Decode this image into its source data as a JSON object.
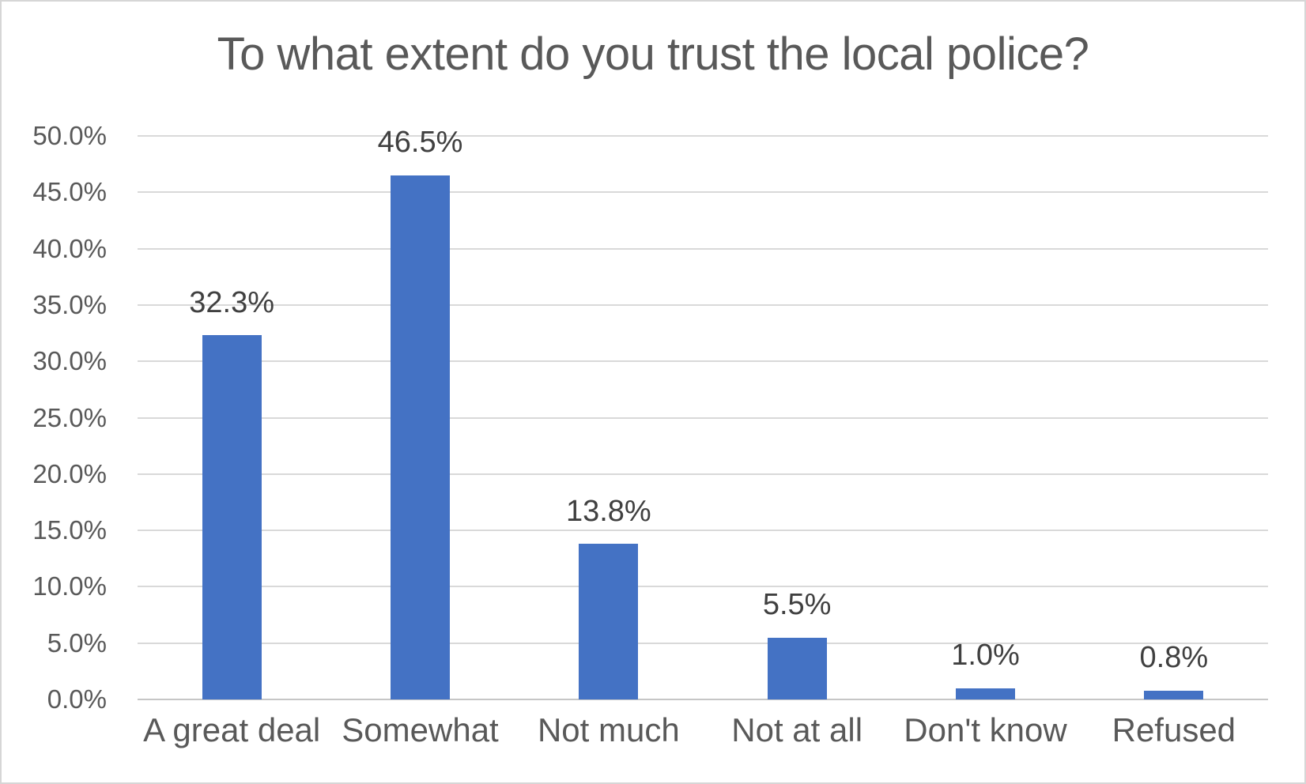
{
  "chart_data": {
    "type": "bar",
    "title": "To what extent do you trust the local police?",
    "categories": [
      "A great deal",
      "Somewhat",
      "Not much",
      "Not at all",
      "Don't know",
      "Refused"
    ],
    "values": [
      32.3,
      46.5,
      13.8,
      5.5,
      1.0,
      0.8
    ],
    "value_labels": [
      "32.3%",
      "46.5%",
      "13.8%",
      "5.5%",
      "1.0%",
      "0.8%"
    ],
    "xlabel": "",
    "ylabel": "",
    "ylim": [
      0,
      50
    ],
    "yticks": [
      {
        "value": 0,
        "label": "0.0%"
      },
      {
        "value": 5,
        "label": "5.0%"
      },
      {
        "value": 10,
        "label": "10.0%"
      },
      {
        "value": 15,
        "label": "15.0%"
      },
      {
        "value": 20,
        "label": "20.0%"
      },
      {
        "value": 25,
        "label": "25.0%"
      },
      {
        "value": 30,
        "label": "30.0%"
      },
      {
        "value": 35,
        "label": "35.0%"
      },
      {
        "value": 40,
        "label": "40.0%"
      },
      {
        "value": 45,
        "label": "45.0%"
      },
      {
        "value": 50,
        "label": "50.0%"
      }
    ],
    "grid": true,
    "legend": "none",
    "colors": {
      "bar": "#4472C4",
      "gridline": "#D9D9D9",
      "axis_line": "#C6C6C6",
      "axis_text": "#595959",
      "data_label": "#404040",
      "title_text": "#595959",
      "canvas_border": "#D6D6D6"
    }
  }
}
